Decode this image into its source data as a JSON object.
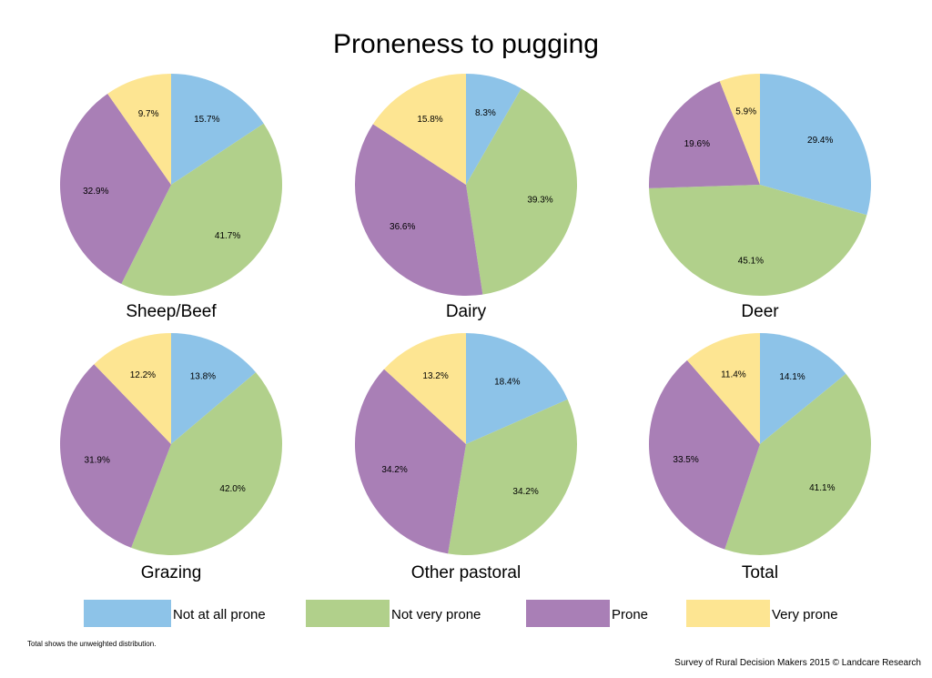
{
  "footnote": "Total shows the unweighted distribution.",
  "source": "Survey of Rural Decision Makers 2015 © Landcare Research",
  "chart_data": {
    "type": "pie",
    "title": "Proneness to pugging",
    "categories": [
      "Not at all prone",
      "Not very prone",
      "Prone",
      "Very prone"
    ],
    "colors": [
      "#8dc3e8",
      "#b1d08b",
      "#a97fb6",
      "#fde592"
    ],
    "legend_position": "bottom",
    "pies": [
      {
        "name": "Sheep/Beef",
        "values": [
          15.7,
          41.7,
          32.9,
          9.7
        ],
        "labels": [
          "15.7%",
          "41.7%",
          "32.9%",
          "9.7%"
        ]
      },
      {
        "name": "Dairy",
        "values": [
          8.3,
          39.3,
          36.6,
          15.8
        ],
        "labels": [
          "8.3%",
          "39.3%",
          "36.6%",
          "15.8%"
        ]
      },
      {
        "name": "Deer",
        "values": [
          29.4,
          45.1,
          19.6,
          5.9
        ],
        "labels": [
          "29.4%",
          "45.1%",
          "19.6%",
          "5.9%"
        ]
      },
      {
        "name": "Grazing",
        "values": [
          13.8,
          42.0,
          31.9,
          12.2
        ],
        "labels": [
          "13.8%",
          "42.0%",
          "31.9%",
          "12.2%"
        ]
      },
      {
        "name": "Other pastoral",
        "values": [
          18.4,
          34.2,
          34.2,
          13.2
        ],
        "labels": [
          "18.4%",
          "34.2%",
          "34.2%",
          "13.2%"
        ]
      },
      {
        "name": "Total",
        "values": [
          14.1,
          41.1,
          33.5,
          11.4
        ],
        "labels": [
          "14.1%",
          "41.1%",
          "33.5%",
          "11.4%"
        ]
      }
    ]
  }
}
